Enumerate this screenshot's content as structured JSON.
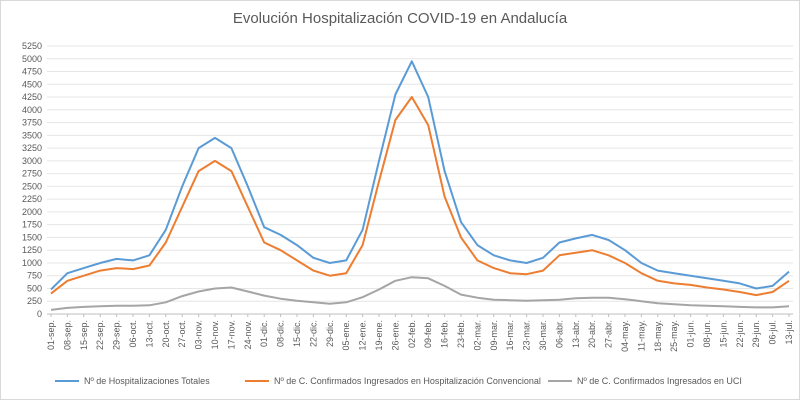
{
  "chart_data": {
    "type": "line",
    "title": "Evolución Hospitalización COVID-19 en Andalucía",
    "ylim": [
      0,
      5250
    ],
    "ytick_step": 250,
    "grid": "horizontal",
    "legend_position": "bottom",
    "x_tick_labels": [
      "01-sep.",
      "08-sep.",
      "15-sep.",
      "22-sep.",
      "29-sep.",
      "06-oct.",
      "13-oct.",
      "20-oct.",
      "27-oct.",
      "03-nov.",
      "10-nov.",
      "17-nov.",
      "24-nov.",
      "01-dic.",
      "08-dic.",
      "15-dic.",
      "22-dic.",
      "29-dic.",
      "05-ene.",
      "12-ene.",
      "19-ene.",
      "26-ene.",
      "02-feb.",
      "09-feb.",
      "16-feb.",
      "23-feb.",
      "02-mar.",
      "09-mar.",
      "16-mar.",
      "23-mar.",
      "30-mar.",
      "06-abr.",
      "13-abr.",
      "20-abr.",
      "27-abr.",
      "04-may.",
      "11-may.",
      "18-may.",
      "25-may.",
      "01-jun.",
      "08-jun.",
      "15-jun.",
      "22-jun.",
      "29-jun.",
      "06-jul.",
      "13-jul."
    ],
    "series": [
      {
        "name": "Nº de Hospitalizaciones Totales",
        "color": "#5b9bd5",
        "values": [
          480,
          800,
          900,
          1000,
          1080,
          1050,
          1150,
          1650,
          2500,
          3250,
          3450,
          3250,
          2500,
          1700,
          1550,
          1350,
          1100,
          1000,
          1050,
          1650,
          3000,
          4300,
          4950,
          4250,
          2800,
          1800,
          1350,
          1150,
          1050,
          1000,
          1100,
          1400,
          1480,
          1550,
          1450,
          1250,
          1000,
          850,
          800,
          750,
          700,
          650,
          600,
          500,
          550,
          830
        ]
      },
      {
        "name": "Nº de C. Confirmados Ingresados en Hospitalización Convencional",
        "color": "#ed7d31",
        "values": [
          400,
          650,
          750,
          850,
          900,
          880,
          950,
          1400,
          2100,
          2800,
          3000,
          2800,
          2100,
          1400,
          1250,
          1050,
          850,
          750,
          800,
          1350,
          2600,
          3800,
          4250,
          3700,
          2300,
          1500,
          1050,
          900,
          800,
          780,
          850,
          1150,
          1200,
          1250,
          1150,
          1000,
          800,
          650,
          600,
          570,
          520,
          480,
          430,
          370,
          430,
          650
        ]
      },
      {
        "name": "Nº de C. Confirmados Ingresados en UCI",
        "color": "#a5a5a5",
        "values": [
          80,
          120,
          140,
          150,
          160,
          160,
          170,
          230,
          350,
          440,
          500,
          520,
          440,
          360,
          300,
          260,
          230,
          200,
          230,
          330,
          480,
          650,
          720,
          700,
          550,
          380,
          320,
          280,
          270,
          260,
          270,
          280,
          310,
          320,
          320,
          290,
          250,
          210,
          190,
          170,
          160,
          150,
          140,
          130,
          130,
          150
        ]
      }
    ]
  }
}
